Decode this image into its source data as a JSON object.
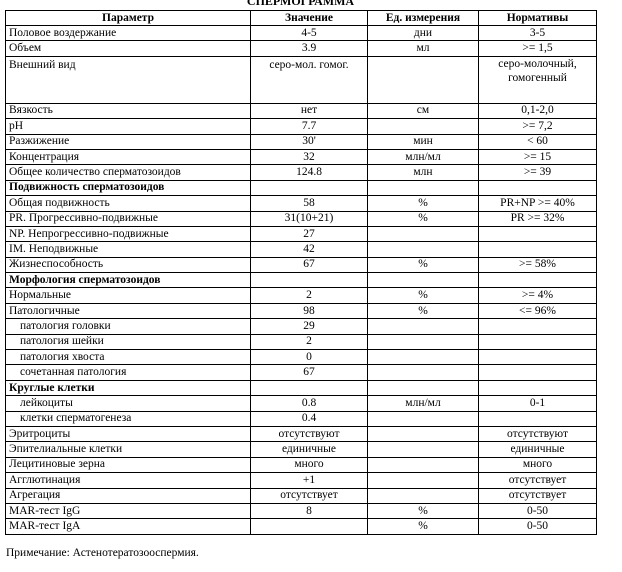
{
  "title": "СПЕРМОГРАММА",
  "headers": [
    "Параметр",
    "Значение",
    "Ед. измерения",
    "Нормативы"
  ],
  "rows": [
    {
      "p": "Половое воздержание",
      "v": "4-5",
      "u": "дни",
      "n": "3-5"
    },
    {
      "p": "Объем",
      "v": "3.9",
      "u": "мл",
      "n": ">= 1,5"
    },
    {
      "p": "Внешний вид",
      "v": "серо-мол. гомог.",
      "u": "",
      "n": "серо-молочный, гомогенный",
      "tall": true
    },
    {
      "p": "Вязкость",
      "v": "нет",
      "u": "см",
      "n": "0,1-2,0"
    },
    {
      "p": "pH",
      "v": "7.7",
      "u": "",
      "n": ">= 7,2"
    },
    {
      "p": "Разжижение",
      "v": "30'",
      "u": "мин",
      "n": "< 60"
    },
    {
      "p": "Концентрация",
      "v": "32",
      "u": "млн/мл",
      "n": ">= 15"
    },
    {
      "p": "Общее количество сперматозоидов",
      "v": "124.8",
      "u": "млн",
      "n": ">= 39"
    },
    {
      "p": "Подвижность сперматозоидов",
      "v": "",
      "u": "",
      "n": "",
      "section": true
    },
    {
      "p": "Общая подвижность",
      "v": "58",
      "u": "%",
      "n": "PR+NP >= 40%"
    },
    {
      "p": "PR. Прогрессивно-подвижные",
      "v": "31(10+21)",
      "u": "%",
      "n": "PR >= 32%"
    },
    {
      "p": "NP. Непрогрессивно-подвижные",
      "v": "27",
      "u": "",
      "n": ""
    },
    {
      "p": "IM. Неподвижные",
      "v": "42",
      "u": "",
      "n": ""
    },
    {
      "p": "Жизнеспособность",
      "v": "67",
      "u": "%",
      "n": ">= 58%"
    },
    {
      "p": "Морфология сперматозоидов",
      "v": "",
      "u": "",
      "n": "",
      "section": true
    },
    {
      "p": "Нормальные",
      "v": "2",
      "u": "%",
      "n": ">= 4%"
    },
    {
      "p": "Патологичные",
      "v": "98",
      "u": "%",
      "n": "<= 96%"
    },
    {
      "p": "патология головки",
      "v": "29",
      "u": "",
      "n": "",
      "indent": true
    },
    {
      "p": "патология шейки",
      "v": "2",
      "u": "",
      "n": "",
      "indent": true
    },
    {
      "p": "патология хвоста",
      "v": "0",
      "u": "",
      "n": "",
      "indent": true
    },
    {
      "p": "сочетанная патология",
      "v": "67",
      "u": "",
      "n": "",
      "indent": true
    },
    {
      "p": "Круглые клетки",
      "v": "",
      "u": "",
      "n": "",
      "section": true
    },
    {
      "p": "лейкоциты",
      "v": "0.8",
      "u": "млн/мл",
      "n": "0-1",
      "indent": true
    },
    {
      "p": "клетки сперматогенеза",
      "v": "0.4",
      "u": "",
      "n": "",
      "indent": true
    },
    {
      "p": "Эритроциты",
      "v": "отсутствуют",
      "u": "",
      "n": "отсутствуют"
    },
    {
      "p": "Эпителиальные клетки",
      "v": "единичные",
      "u": "",
      "n": "единичные"
    },
    {
      "p": "Лецитиновые зерна",
      "v": "много",
      "u": "",
      "n": "много"
    },
    {
      "p": "Агглютинация",
      "v": "+1",
      "u": "",
      "n": "отсутствует"
    },
    {
      "p": "Агрегация",
      "v": "отсутствует",
      "u": "",
      "n": "отсутствует"
    },
    {
      "p": "MAR-тест IgG",
      "v": "8",
      "u": "%",
      "n": "0-50"
    },
    {
      "p": "MAR-тест IgA",
      "v": "",
      "u": "%",
      "n": "0-50"
    }
  ],
  "note": "Примечание: Астенотератозооспермия."
}
